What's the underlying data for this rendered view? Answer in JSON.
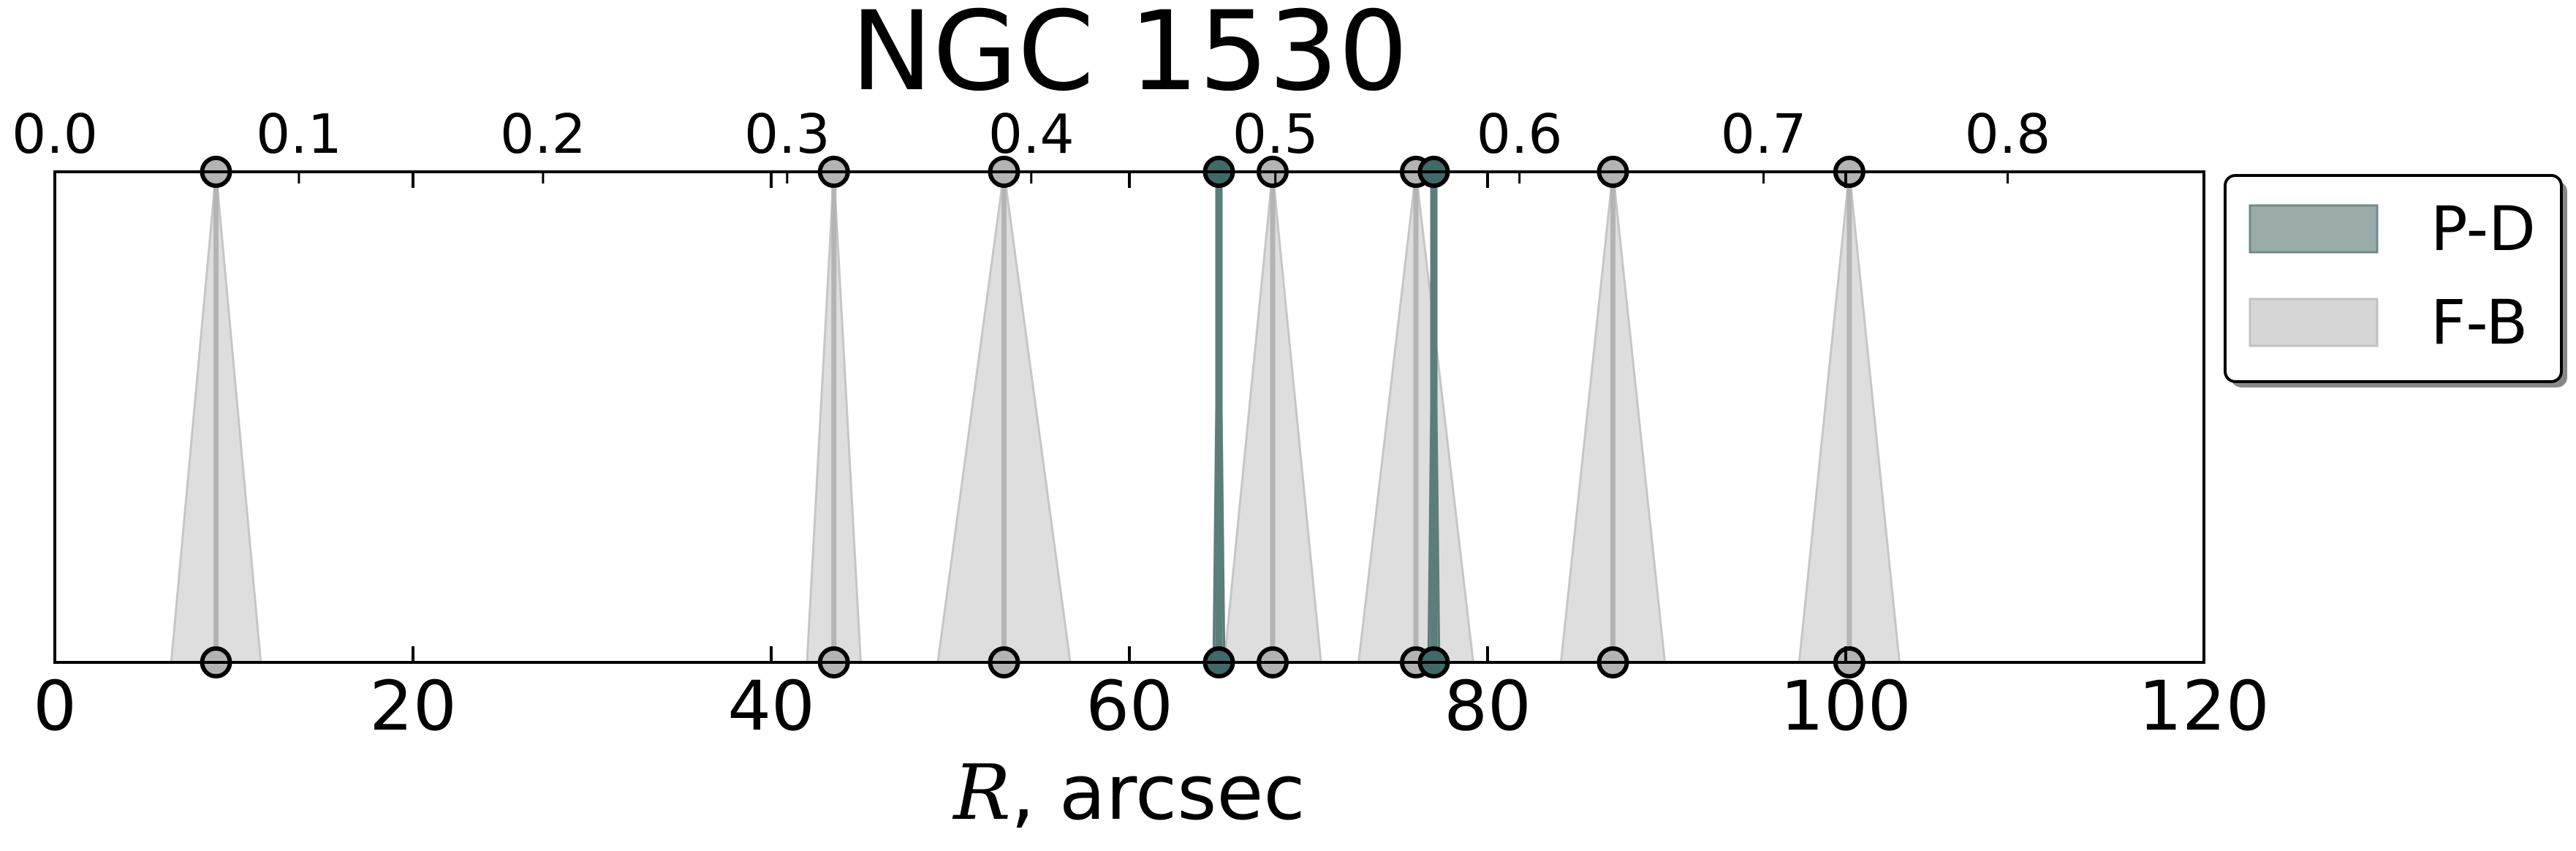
{
  "chart_data": {
    "type": "scatter",
    "title": "NGC 1530",
    "xlabel_symbol": "R",
    "xlabel_rest": ", arcsec",
    "xlim": [
      0,
      120
    ],
    "x_ticks": [
      "0",
      "20",
      "40",
      "60",
      "80",
      "100",
      "120"
    ],
    "top_xlim": [
      0.0,
      0.8804
    ],
    "top_ticks": [
      "0.0",
      "0.1",
      "0.2",
      "0.3",
      "0.4",
      "0.5",
      "0.6",
      "0.7",
      "0.8"
    ],
    "grid": false,
    "legend_position": "outside-right-top",
    "legend": [
      {
        "label": "P-D",
        "color": "#5f7f7d"
      },
      {
        "label": "F-B",
        "color": "#c8c8c8"
      }
    ],
    "series": [
      {
        "name": "P-D",
        "color": "#3f6a69",
        "points": [
          {
            "x": 65.0,
            "err": 0.3
          },
          {
            "x": 77.0,
            "err": 0.3
          }
        ]
      },
      {
        "name": "F-B",
        "color": "#b3b3b3",
        "points": [
          {
            "x": 9.0,
            "err": 2.5
          },
          {
            "x": 43.5,
            "err": 1.5
          },
          {
            "x": 53.0,
            "err": 3.7
          },
          {
            "x": 68.0,
            "err": 2.7
          },
          {
            "x": 76.0,
            "err": 3.2
          },
          {
            "x": 87.0,
            "err": 2.9
          },
          {
            "x": 100.2,
            "err": 2.8
          }
        ]
      }
    ]
  }
}
